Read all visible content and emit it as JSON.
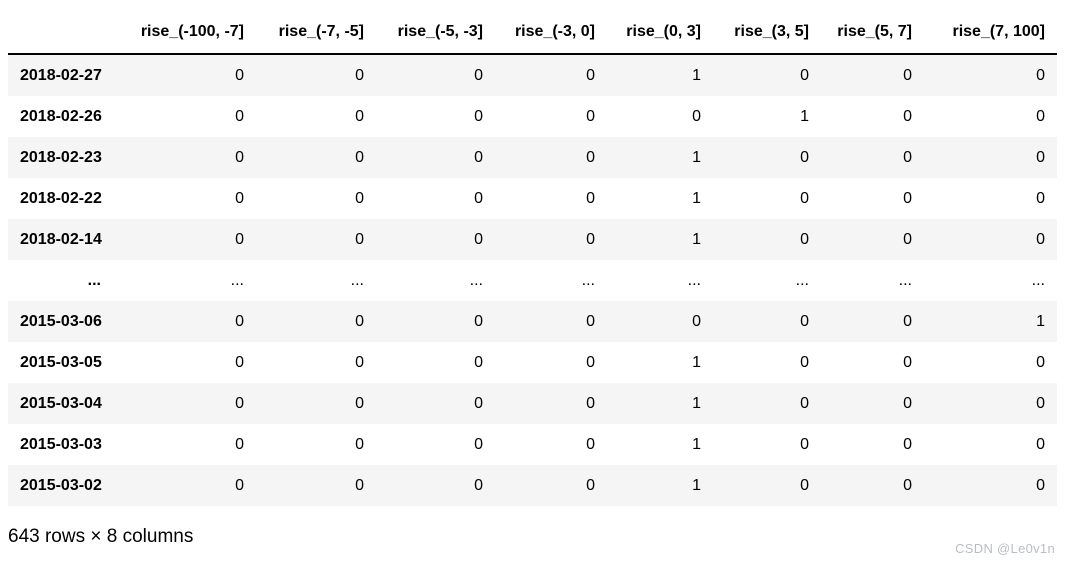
{
  "table": {
    "index_header": "",
    "columns": [
      "rise_(-100, -7]",
      "rise_(-7, -5]",
      "rise_(-5, -3]",
      "rise_(-3, 0]",
      "rise_(0, 3]",
      "rise_(3, 5]",
      "rise_(5, 7]",
      "rise_(7, 100]"
    ],
    "rows": [
      {
        "index": "2018-02-27",
        "values": [
          "0",
          "0",
          "0",
          "0",
          "1",
          "0",
          "0",
          "0"
        ]
      },
      {
        "index": "2018-02-26",
        "values": [
          "0",
          "0",
          "0",
          "0",
          "0",
          "1",
          "0",
          "0"
        ]
      },
      {
        "index": "2018-02-23",
        "values": [
          "0",
          "0",
          "0",
          "0",
          "1",
          "0",
          "0",
          "0"
        ]
      },
      {
        "index": "2018-02-22",
        "values": [
          "0",
          "0",
          "0",
          "0",
          "1",
          "0",
          "0",
          "0"
        ]
      },
      {
        "index": "2018-02-14",
        "values": [
          "0",
          "0",
          "0",
          "0",
          "1",
          "0",
          "0",
          "0"
        ]
      },
      {
        "index": "...",
        "values": [
          "...",
          "...",
          "...",
          "...",
          "...",
          "...",
          "...",
          "..."
        ]
      },
      {
        "index": "2015-03-06",
        "values": [
          "0",
          "0",
          "0",
          "0",
          "0",
          "0",
          "0",
          "1"
        ]
      },
      {
        "index": "2015-03-05",
        "values": [
          "0",
          "0",
          "0",
          "0",
          "1",
          "0",
          "0",
          "0"
        ]
      },
      {
        "index": "2015-03-04",
        "values": [
          "0",
          "0",
          "0",
          "0",
          "1",
          "0",
          "0",
          "0"
        ]
      },
      {
        "index": "2015-03-03",
        "values": [
          "0",
          "0",
          "0",
          "0",
          "1",
          "0",
          "0",
          "0"
        ]
      },
      {
        "index": "2015-03-02",
        "values": [
          "0",
          "0",
          "0",
          "0",
          "1",
          "0",
          "0",
          "0"
        ]
      }
    ],
    "summary": "643 rows × 8 columns"
  },
  "watermark": "CSDN @Le0v1n",
  "colors": {
    "stripe": "#f5f5f5",
    "header_border": "#000000",
    "text": "#000000",
    "watermark": "#b9bdc2"
  }
}
